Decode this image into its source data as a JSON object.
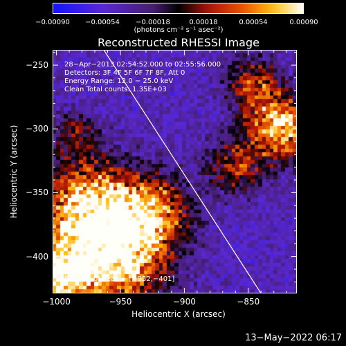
{
  "chart_data": {
    "type": "heatmap",
    "title": "Reconstructed RHESSI Image",
    "xlabel": "Heliocentric X (arcsec)",
    "ylabel": "Heliocentric Y (arcsec)",
    "xlim": [
      -1003,
      -812
    ],
    "ylim": [
      -429,
      -238
    ],
    "xticks": [
      -1000,
      -950,
      -900,
      -850
    ],
    "xtick_labels": [
      "−1000",
      "−950",
      "−900",
      "−850"
    ],
    "yticks": [
      -250,
      -300,
      -350,
      -400
    ],
    "ytick_labels": [
      "−250",
      "−300",
      "−350",
      "−400"
    ],
    "colorbar": {
      "range": [
        -0.0009,
        0.0009
      ],
      "ticks": [
        -0.0009,
        -0.00054,
        -0.00018,
        0.00018,
        0.00054,
        0.0009
      ],
      "tick_labels": [
        "−0.00090",
        "−0.00054",
        "−0.00018",
        "0.00018",
        "0.00054",
        "0.00090"
      ],
      "units": "(photons cm⁻² s⁻¹ asec⁻²)"
    },
    "annotations": [
      "28−Apr−2013 02:54:52.000 to 02:55:56.000",
      "Detectors: 3F 4F 5F 6F 7F 8F, Att 0",
      "Energy Range: 12.0 − 25.0 keV",
      "Clean     Total counts: 1.35E+03"
    ],
    "peak_label": "Position of Peak = [−952,−401]",
    "limb_line": {
      "x": [
        -963,
        -840
      ],
      "y": [
        -238,
        -429
      ]
    },
    "bright_regions": [
      {
        "x": -955,
        "y": -400,
        "sigma": 28,
        "amp": 1.0
      },
      {
        "x": -975,
        "y": -360,
        "sigma": 25,
        "amp": 0.85
      },
      {
        "x": -925,
        "y": -365,
        "sigma": 20,
        "amp": 0.7
      },
      {
        "x": -1000,
        "y": -415,
        "sigma": 18,
        "amp": 0.9
      },
      {
        "x": -825,
        "y": -300,
        "sigma": 18,
        "amp": 0.9
      },
      {
        "x": -845,
        "y": -265,
        "sigma": 15,
        "amp": 0.55
      },
      {
        "x": -860,
        "y": -330,
        "sigma": 15,
        "amp": 0.5
      },
      {
        "x": -985,
        "y": -305,
        "sigma": 12,
        "amp": 0.35
      }
    ]
  },
  "timestamp": "13−May−2022 06:17"
}
